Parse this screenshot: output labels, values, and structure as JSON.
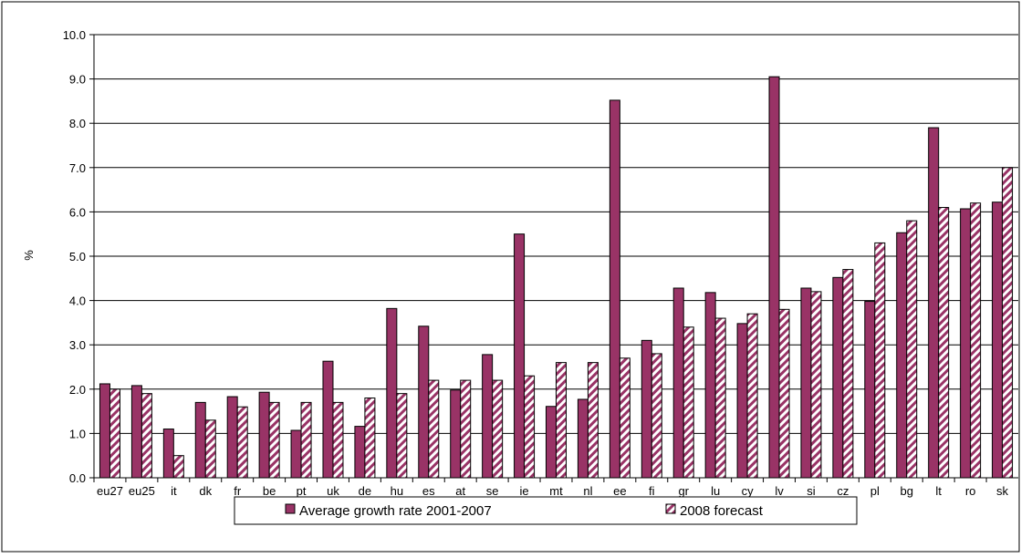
{
  "chart_data": {
    "type": "bar",
    "title": "",
    "xlabel": "",
    "ylabel": "%",
    "ylim": [
      0,
      10
    ],
    "ytick_step": 1,
    "ytick_labels": [
      "0.0",
      "1.0",
      "2.0",
      "3.0",
      "4.0",
      "5.0",
      "6.0",
      "7.0",
      "8.0",
      "9.0",
      "10.0"
    ],
    "grid": true,
    "legend_position": "bottom",
    "categories": [
      "eu27",
      "eu25",
      "it",
      "dk",
      "fr",
      "be",
      "pt",
      "uk",
      "de",
      "hu",
      "es",
      "at",
      "se",
      "ie",
      "mt",
      "nl",
      "ee",
      "fi",
      "gr",
      "lu",
      "cy",
      "lv",
      "si",
      "cz",
      "pl",
      "bg",
      "lt",
      "ro",
      "sk"
    ],
    "series": [
      {
        "name": "Average growth rate 2001-2007",
        "color": "#993366",
        "pattern": "solid",
        "values": [
          2.12,
          2.08,
          1.1,
          1.7,
          1.83,
          1.93,
          1.07,
          2.63,
          1.16,
          3.82,
          3.42,
          1.98,
          2.78,
          5.5,
          1.61,
          1.77,
          8.52,
          3.1,
          4.28,
          4.18,
          3.48,
          9.05,
          4.28,
          4.52,
          3.98,
          5.53,
          7.9,
          6.07,
          6.22
        ]
      },
      {
        "name": "2008 forecast",
        "color": "#993366",
        "pattern": "hatched",
        "values": [
          2.0,
          1.9,
          0.5,
          1.3,
          1.6,
          1.7,
          1.7,
          1.7,
          1.8,
          1.9,
          2.2,
          2.2,
          2.2,
          2.3,
          2.6,
          2.6,
          2.7,
          2.8,
          3.4,
          3.6,
          3.7,
          3.8,
          4.2,
          4.7,
          5.3,
          5.8,
          6.1,
          6.2,
          7.0
        ]
      }
    ]
  }
}
